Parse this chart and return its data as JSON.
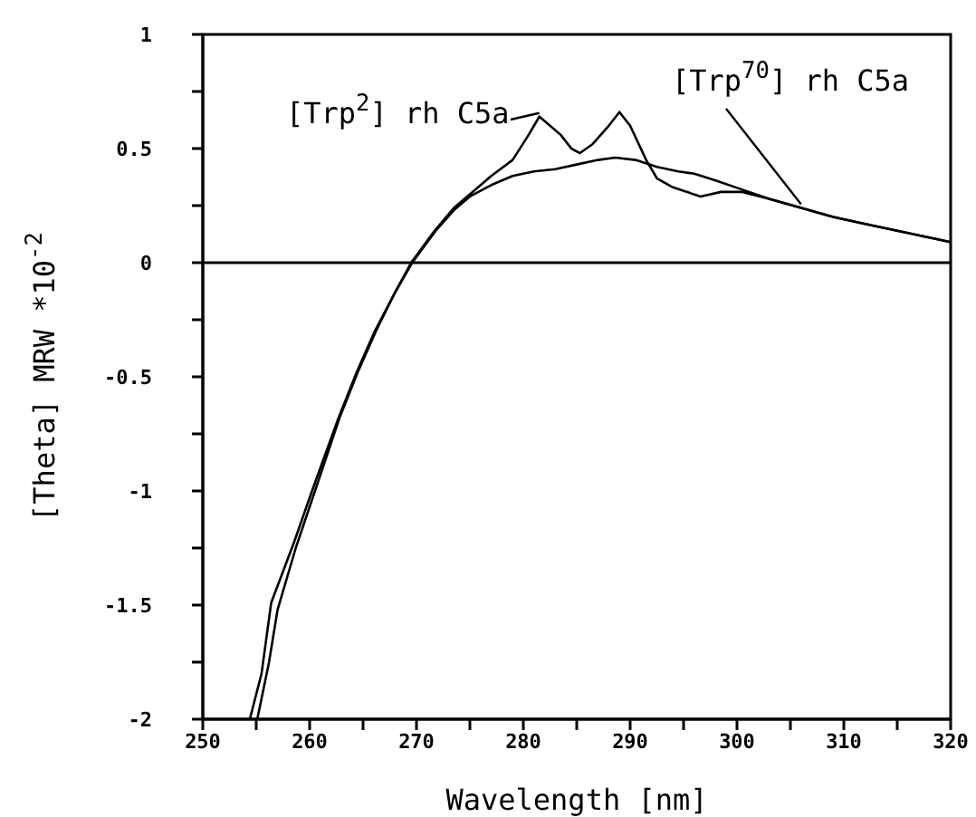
{
  "chart_data": {
    "type": "line",
    "xlabel": "Wavelength [nm]",
    "ylabel": "[Theta] MRW *10$^{-2}$",
    "xlim": [
      250,
      320
    ],
    "ylim": [
      -2,
      1
    ],
    "xticks": [
      250,
      {
        "value": 255,
        "label": null
      },
      260,
      {
        "value": 265,
        "label": null
      },
      270,
      {
        "value": 275,
        "label": null
      },
      280,
      {
        "value": 285,
        "label": null
      },
      290,
      {
        "value": 295,
        "label": null
      },
      300,
      {
        "value": 305,
        "label": null
      },
      310,
      {
        "value": 315,
        "label": null
      },
      320
    ],
    "yticks": [
      -2,
      {
        "value": -1.75,
        "label": null
      },
      -1.5,
      {
        "value": -1.25,
        "label": null
      },
      -1,
      {
        "value": -0.75,
        "label": null
      },
      -0.5,
      {
        "value": -0.25,
        "label": null
      },
      0,
      {
        "value": 0.25,
        "label": null
      },
      0.5,
      {
        "value": 0.75,
        "label": null
      },
      1
    ],
    "grid": false,
    "marker": "none",
    "line_style": "solid",
    "ref_lines": [
      {
        "axis": "y",
        "value": 0,
        "color": "#000000"
      }
    ],
    "series": [
      {
        "name": "[Trp$^{2}$] rh C5a",
        "color": "#000000",
        "x": [
          254.4,
          255.5,
          256.4,
          258.5,
          260.3,
          262.7,
          264.4,
          266.1,
          268,
          269.5,
          271.7,
          273.5,
          275,
          277,
          279,
          280.5,
          281.5,
          282.5,
          283.5,
          284.5,
          285.3,
          286.5,
          288,
          289,
          290,
          291.5,
          292.5,
          294,
          296.6,
          298.5,
          300.5,
          303,
          306,
          309,
          312,
          315,
          318,
          320
        ],
        "values": [
          -2,
          -1.8,
          -1.49,
          -1.23,
          -0.99,
          -0.68,
          -0.48,
          -0.3,
          -0.13,
          0,
          0.14,
          0.24,
          0.3,
          0.38,
          0.45,
          0.56,
          0.64,
          0.6,
          0.56,
          0.5,
          0.48,
          0.52,
          0.6,
          0.66,
          0.6,
          0.45,
          0.37,
          0.33,
          0.29,
          0.31,
          0.31,
          0.28,
          0.24,
          0.2,
          0.17,
          0.14,
          0.11,
          0.09
        ]
      },
      {
        "name": "[Trp$^{70}$] rh C5a",
        "color": "#000000",
        "x": [
          255.1,
          256.2,
          257,
          258.7,
          260.5,
          262.8,
          264.5,
          266.2,
          268,
          269.6,
          271.8,
          273.5,
          275,
          277,
          279,
          281,
          283,
          285,
          287,
          288.6,
          290.5,
          292.5,
          294.5,
          296,
          298,
          300.5,
          303,
          306,
          309,
          312,
          315,
          318,
          320
        ],
        "values": [
          -2,
          -1.75,
          -1.52,
          -1.25,
          -1,
          -0.68,
          -0.48,
          -0.3,
          -0.13,
          0,
          0.14,
          0.23,
          0.29,
          0.34,
          0.38,
          0.4,
          0.41,
          0.43,
          0.45,
          0.46,
          0.45,
          0.42,
          0.4,
          0.39,
          0.36,
          0.32,
          0.28,
          0.24,
          0.2,
          0.17,
          0.14,
          0.11,
          0.09
        ]
      }
    ]
  }
}
